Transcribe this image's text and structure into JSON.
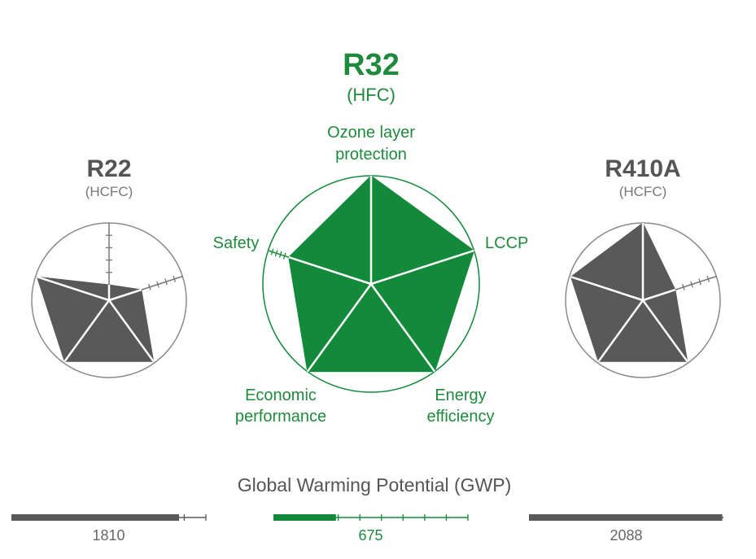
{
  "colors": {
    "accent": "#128a3a",
    "accent_text": "#1f8a3c",
    "gray_fill": "#595959",
    "gray_text": "#555555",
    "outline": "#8a8a8a"
  },
  "chart_data": [
    {
      "type": "radar",
      "title": "R22",
      "subtitle": "(HCFC)",
      "axes": [
        "Ozone layer protection",
        "LCCP",
        "Energy efficiency",
        "Economic performance",
        "Safety"
      ],
      "values": [
        0.2,
        0.44,
        0.98,
        0.98,
        0.98
      ],
      "max": 1
    },
    {
      "type": "radar",
      "title": "R32",
      "subtitle": "(HFC)",
      "axis_labels": {
        "ozone_line1": "Ozone layer",
        "ozone_line2": "protection",
        "lccp": "LCCP",
        "energy_line1": "Energy",
        "energy_line2": "efficiency",
        "economic_line1": "Economic",
        "economic_line2": "performance",
        "safety": "Safety"
      },
      "axes": [
        "Ozone layer protection",
        "LCCP",
        "Energy efficiency",
        "Economic performance",
        "Safety"
      ],
      "values": [
        1.0,
        1.0,
        1.0,
        1.0,
        0.8
      ],
      "max": 1
    },
    {
      "type": "radar",
      "title": "R410A",
      "subtitle": "(HCFC)",
      "axes": [
        "Ozone layer protection",
        "LCCP",
        "Energy efficiency",
        "Economic performance",
        "Safety"
      ],
      "values": [
        1.0,
        0.44,
        0.98,
        0.98,
        0.98
      ],
      "max": 1
    },
    {
      "type": "bar",
      "title": "Global Warming Potential (GWP)",
      "categories": [
        "R22",
        "R32",
        "R410A"
      ],
      "values": [
        1810,
        675,
        2088
      ],
      "value_labels": [
        "1810",
        "675",
        "2088"
      ],
      "ylim": [
        0,
        2100
      ]
    }
  ]
}
